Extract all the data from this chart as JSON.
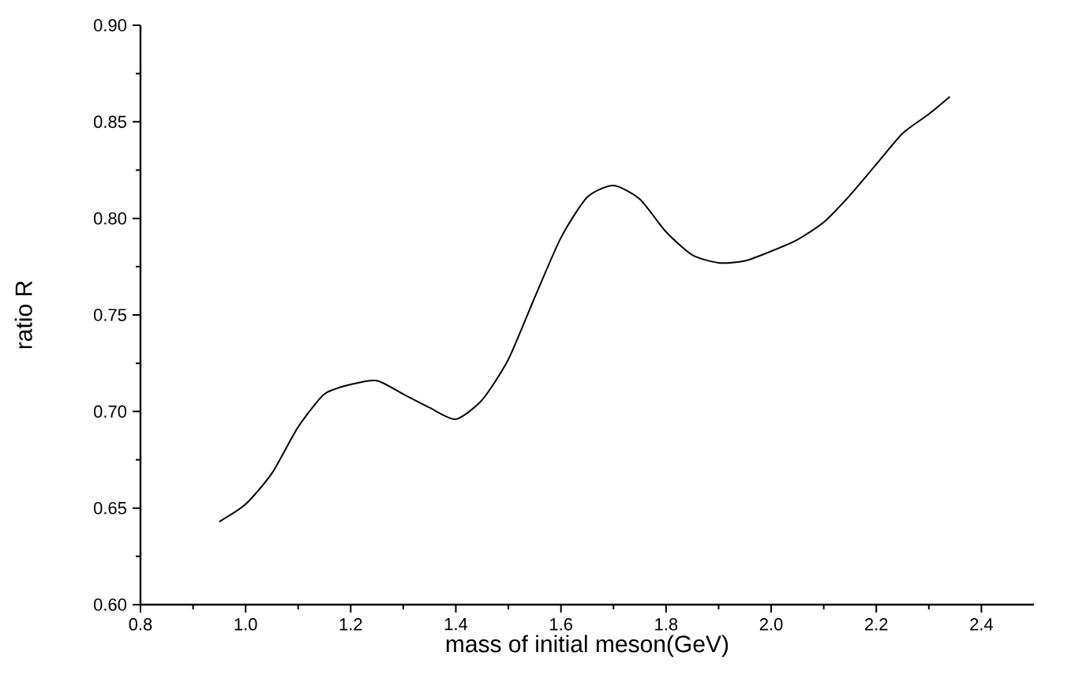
{
  "chart_data": {
    "type": "line",
    "xlabel": "mass of initial meson(GeV)",
    "ylabel": "ratio R",
    "xlim": [
      0.8,
      2.5
    ],
    "ylim": [
      0.6,
      0.9
    ],
    "xticks": [
      {
        "value": 0.8,
        "label": "0.8"
      },
      {
        "value": 1.0,
        "label": "1.0"
      },
      {
        "value": 1.2,
        "label": "1.2"
      },
      {
        "value": 1.4,
        "label": "1.4"
      },
      {
        "value": 1.6,
        "label": "1.6"
      },
      {
        "value": 1.8,
        "label": "1.8"
      },
      {
        "value": 2.0,
        "label": "2.0"
      },
      {
        "value": 2.2,
        "label": "2.2"
      },
      {
        "value": 2.4,
        "label": "2.4"
      }
    ],
    "yticks": [
      {
        "value": 0.6,
        "label": "0.60"
      },
      {
        "value": 0.65,
        "label": "0.65"
      },
      {
        "value": 0.7,
        "label": "0.70"
      },
      {
        "value": 0.75,
        "label": "0.75"
      },
      {
        "value": 0.8,
        "label": "0.80"
      },
      {
        "value": 0.85,
        "label": "0.85"
      },
      {
        "value": 0.9,
        "label": "0.90"
      }
    ],
    "marker": "none",
    "line_style": "solid",
    "series": [
      {
        "color": "#000000",
        "x": [
          0.95,
          1.0,
          1.05,
          1.1,
          1.15,
          1.2,
          1.25,
          1.3,
          1.35,
          1.4,
          1.45,
          1.5,
          1.55,
          1.6,
          1.65,
          1.7,
          1.75,
          1.8,
          1.85,
          1.9,
          1.95,
          2.0,
          2.05,
          2.1,
          2.15,
          2.2,
          2.25,
          2.3,
          2.34
        ],
        "values": [
          0.643,
          0.652,
          0.668,
          0.692,
          0.709,
          0.714,
          0.716,
          0.709,
          0.702,
          0.696,
          0.706,
          0.727,
          0.759,
          0.79,
          0.811,
          0.817,
          0.81,
          0.793,
          0.781,
          0.777,
          0.778,
          0.783,
          0.789,
          0.798,
          0.812,
          0.828,
          0.844,
          0.854,
          0.863
        ]
      }
    ]
  }
}
